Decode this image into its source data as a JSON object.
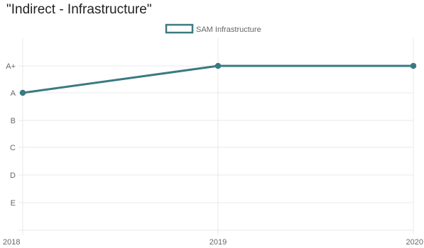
{
  "chart_data": {
    "type": "line",
    "title": "\"Indirect - Infrastructure\"",
    "categories": [
      "2018",
      "2019",
      "2020"
    ],
    "y_categories": [
      "A+",
      "A",
      "B",
      "C",
      "D",
      "E"
    ],
    "series": [
      {
        "name": "SAM Infrastructure",
        "values": [
          "A",
          "A+",
          "A+"
        ],
        "color": "#3a7a82"
      }
    ],
    "legend_position": "top-center",
    "grid": true
  }
}
